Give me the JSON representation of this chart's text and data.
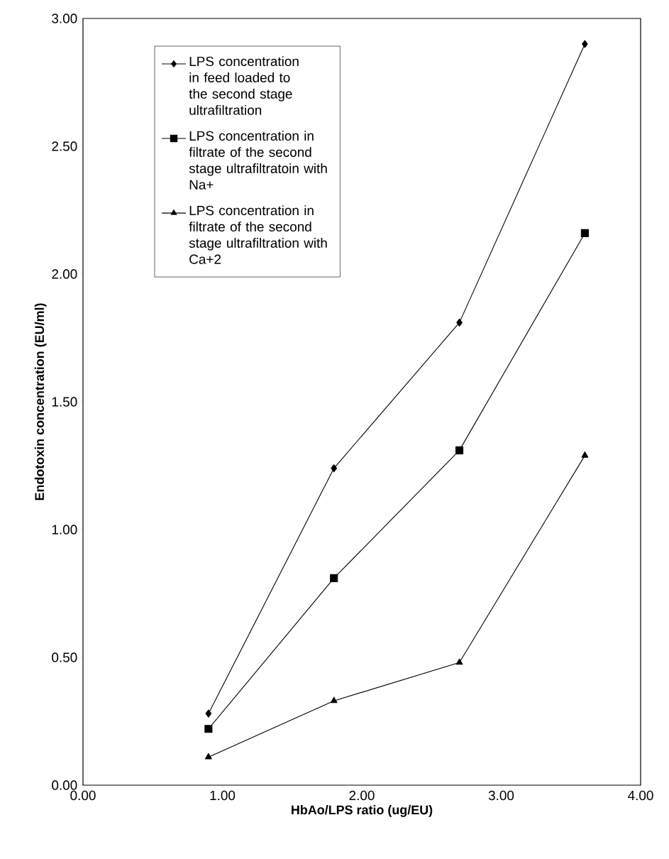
{
  "chart_data": {
    "type": "line",
    "xlabel": "HbAo/LPS ratio (ug/EU)",
    "ylabel": "Endotoxin concentration (EU/ml)",
    "x": [
      0.9,
      1.8,
      2.7,
      3.6
    ],
    "series": [
      {
        "name": "LPS concentration in feed loaded to the second stage ultrafiltration",
        "color": "#000000",
        "marker": "diamond",
        "values": [
          0.28,
          1.24,
          1.81,
          2.9
        ]
      },
      {
        "name": "LPS concentration in filtrate of the second stage ultrafiltratoin with Na+",
        "color": "#000000",
        "marker": "square",
        "values": [
          0.22,
          0.81,
          1.31,
          2.16
        ]
      },
      {
        "name": "LPS concentration in filtrate of the second stage ultrafiltration with Ca+2",
        "color": "#000000",
        "marker": "triangle",
        "values": [
          0.11,
          0.33,
          0.48,
          1.29
        ]
      }
    ],
    "xlim": [
      0,
      4
    ],
    "xticks": [
      {
        "value": 0,
        "label": "0.00"
      },
      {
        "value": 1,
        "label": "1.00"
      },
      {
        "value": 2,
        "label": "2.00"
      },
      {
        "value": 3,
        "label": "3.00"
      },
      {
        "value": 4,
        "label": "4.00"
      }
    ],
    "ylim": [
      0,
      3
    ],
    "yticks": [
      {
        "value": 0,
        "label": "0.00"
      },
      {
        "value": 0.5,
        "label": "0.50"
      },
      {
        "value": 1,
        "label": "1.00"
      },
      {
        "value": 1.5,
        "label": "1.50"
      },
      {
        "value": 2,
        "label": "2.00"
      },
      {
        "value": 2.5,
        "label": "2.50"
      },
      {
        "value": 3,
        "label": "3.00"
      }
    ],
    "grid": false,
    "legend": "top left",
    "line_style": "solid"
  }
}
